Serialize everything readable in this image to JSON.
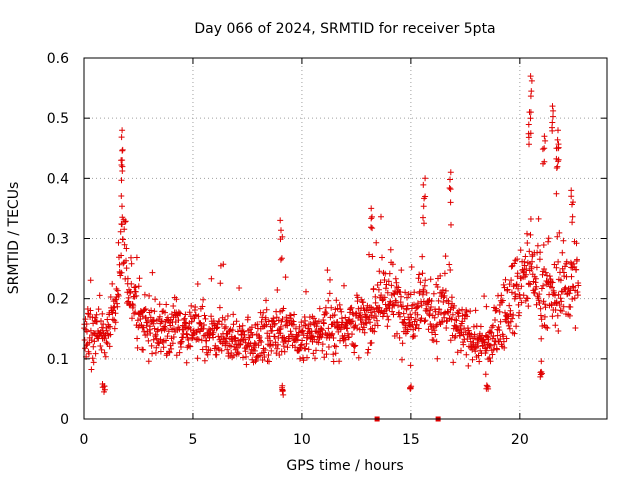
{
  "chart_data": {
    "type": "scatter",
    "title": "Day 066 of 2024, SRMTID for receiver 5pta",
    "xlabel": "GPS time / hours",
    "ylabel": "SRMTID / TECUs",
    "xlim": [
      0,
      24
    ],
    "ylim": [
      0,
      0.6
    ],
    "xticks": [
      0,
      5,
      10,
      15,
      20
    ],
    "xtick_labels": [
      "0",
      "5",
      "10",
      "15",
      "20"
    ],
    "yticks": [
      0,
      0.1,
      0.2,
      0.3,
      0.4,
      0.5,
      0.6
    ],
    "ytick_labels": [
      "0",
      "0.1",
      "0.2",
      "0.3",
      "0.4",
      "0.5",
      "0.6"
    ],
    "grid": true,
    "marker": "+",
    "color": "#e00000",
    "series": [
      {
        "name": "SRMTID",
        "envelope": [
          [
            0,
            0.14
          ],
          [
            0.5,
            0.15
          ],
          [
            1.0,
            0.13
          ],
          [
            1.5,
            0.2
          ],
          [
            1.75,
            0.3
          ],
          [
            2.0,
            0.22
          ],
          [
            2.5,
            0.18
          ],
          [
            3.0,
            0.15
          ],
          [
            4.0,
            0.15
          ],
          [
            5.0,
            0.15
          ],
          [
            6.0,
            0.14
          ],
          [
            7.0,
            0.13
          ],
          [
            8.0,
            0.13
          ],
          [
            9.0,
            0.15
          ],
          [
            10.0,
            0.13
          ],
          [
            11.0,
            0.15
          ],
          [
            12.0,
            0.16
          ],
          [
            13.0,
            0.16
          ],
          [
            13.5,
            0.2
          ],
          [
            14.0,
            0.2
          ],
          [
            15.0,
            0.17
          ],
          [
            15.5,
            0.22
          ],
          [
            16.0,
            0.16
          ],
          [
            16.5,
            0.2
          ],
          [
            17.0,
            0.15
          ],
          [
            18.0,
            0.13
          ],
          [
            18.5,
            0.12
          ],
          [
            19.0,
            0.15
          ],
          [
            19.5,
            0.2
          ],
          [
            20.0,
            0.22
          ],
          [
            20.5,
            0.25
          ],
          [
            21.0,
            0.22
          ],
          [
            21.5,
            0.2
          ],
          [
            22.0,
            0.22
          ],
          [
            22.5,
            0.23
          ]
        ],
        "x_range": [
          0,
          22.7
        ],
        "spikes": [
          [
            1.75,
            0.48
          ],
          [
            1.7,
            0.43
          ],
          [
            9.05,
            0.33
          ],
          [
            13.2,
            0.35
          ],
          [
            15.6,
            0.4
          ],
          [
            16.8,
            0.41
          ],
          [
            20.5,
            0.57
          ],
          [
            20.45,
            0.5
          ],
          [
            21.1,
            0.47
          ],
          [
            21.5,
            0.52
          ],
          [
            21.75,
            0.48
          ],
          [
            21.7,
            0.45
          ],
          [
            22.4,
            0.38
          ],
          [
            9.1,
            0.04
          ],
          [
            15.0,
            0.05
          ],
          [
            0.9,
            0.045
          ],
          [
            18.5,
            0.05
          ],
          [
            21.0,
            0.07
          ]
        ]
      },
      {
        "name": "zero markers",
        "marker": "square",
        "points": [
          [
            13.45,
            0
          ],
          [
            16.25,
            0
          ]
        ]
      }
    ]
  }
}
